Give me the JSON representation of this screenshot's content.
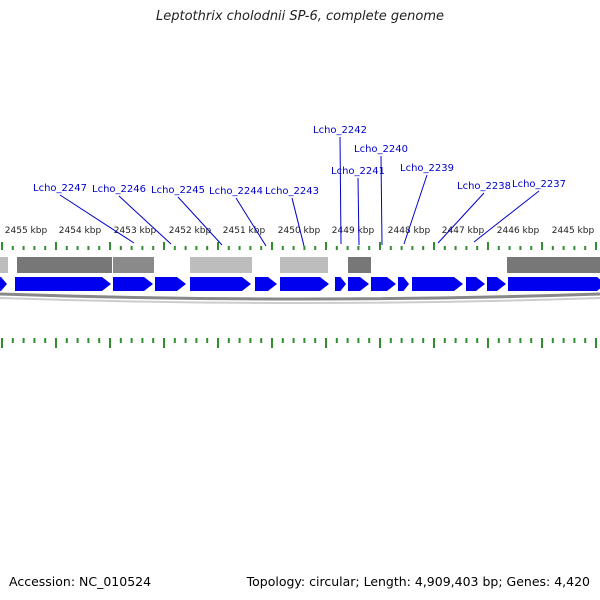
{
  "header": {
    "title": "Leptothrix cholodnii SP-6, complete genome"
  },
  "footer": {
    "accession_text": "Accession: NC_010524",
    "summary_text": "Topology: circular; Length: 4,909,403 bp; Genes: 4,420"
  },
  "colors": {
    "gene_blue": "#0000ee",
    "label_blue": "#0000cc",
    "tick_green": "#2f8f2f",
    "bar_dark": "#777777",
    "bar_light": "#bdbdbd",
    "backbone": "#888888"
  },
  "kbp_ticks": [
    "2455 kbp",
    "2454 kbp",
    "2453 kbp",
    "2452 kbp",
    "2451 kbp",
    "2450 kbp",
    "2449 kbp",
    "2448 kbp",
    "2447 kbp",
    "2446 kbp",
    "2445 kbp"
  ],
  "gene_labels": [
    "Lcho_2247",
    "Lcho_2246",
    "Lcho_2245",
    "Lcho_2244",
    "Lcho_2243",
    "Lcho_2242",
    "Lcho_2241",
    "Lcho_2240",
    "Lcho_2239",
    "Lcho_2238",
    "Lcho_2237"
  ]
}
